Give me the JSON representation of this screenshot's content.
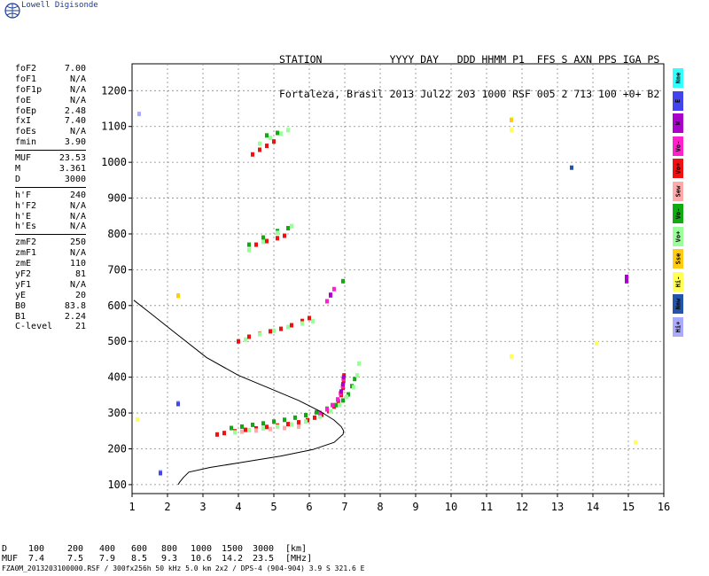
{
  "brand": "Lowell Digisonde",
  "header": {
    "line1": "STATION           YYYY DAY   DDD HHMM P1  FFS S AXN PPS IGA PS",
    "line2": "Fortaleza, Brasil 2013 Jul22 203 1000 RSF 005 2 713 100 +0+ B2"
  },
  "params": [
    [
      {
        "k": "foF2",
        "v": "7.00"
      },
      {
        "k": "foF1",
        "v": "N/A"
      },
      {
        "k": "foF1p",
        "v": "N/A"
      },
      {
        "k": "foE",
        "v": "N/A"
      },
      {
        "k": "foEp",
        "v": "2.48"
      },
      {
        "k": "fxI",
        "v": "7.40"
      },
      {
        "k": "foEs",
        "v": "N/A"
      },
      {
        "k": "fmin",
        "v": "3.90"
      }
    ],
    [
      {
        "k": "MUF",
        "v": "23.53"
      },
      {
        "k": "M",
        "v": "3.361"
      },
      {
        "k": "D",
        "v": "3000"
      }
    ],
    [
      {
        "k": "h'F",
        "v": "240"
      },
      {
        "k": "h'F2",
        "v": "N/A"
      },
      {
        "k": "h'E",
        "v": "N/A"
      },
      {
        "k": "h'Es",
        "v": "N/A"
      }
    ],
    [
      {
        "k": "zmF2",
        "v": "250"
      },
      {
        "k": "zmF1",
        "v": "N/A"
      },
      {
        "k": "zmE",
        "v": "110"
      },
      {
        "k": "yF2",
        "v": "81"
      },
      {
        "k": "yF1",
        "v": "N/A"
      },
      {
        "k": "yE",
        "v": "20"
      },
      {
        "k": "B0",
        "v": "83.8"
      },
      {
        "k": "B1",
        "v": "2.24"
      },
      {
        "k": "C-level",
        "v": "21"
      }
    ]
  ],
  "legend": [
    {
      "label": "Nne",
      "color": "#33ffff"
    },
    {
      "label": "E",
      "color": "#4444ee"
    },
    {
      "label": "W",
      "color": "#aa00cc"
    },
    {
      "label": "Vo-",
      "color": "#ff22cc"
    },
    {
      "label": "Vo+",
      "color": "#ee1111"
    },
    {
      "label": "Sew",
      "color": "#ffaaaa"
    },
    {
      "label": "Vo-",
      "color": "#11aa11"
    },
    {
      "label": "Vo+",
      "color": "#99ff99"
    },
    {
      "label": "Sse",
      "color": "#ffcc11"
    },
    {
      "label": "Hi-",
      "color": "#ffff55"
    },
    {
      "label": "Nnw",
      "color": "#2255aa"
    },
    {
      "label": "Hi+",
      "color": "#aaaaff"
    }
  ],
  "footer": {
    "d_label": "D",
    "muf_label": "MUF",
    "d_values": [
      "100",
      "200",
      "400",
      "600",
      "800",
      "1000",
      "1500",
      "3000"
    ],
    "muf_values": [
      "7.4",
      "7.5",
      "7.9",
      "8.5",
      "9.3",
      "10.6",
      "14.2",
      "23.5"
    ],
    "d_unit": "[km]",
    "muf_unit": "[MHz]"
  },
  "file_line": "FZA0M_2013203100000.RSF / 300fx256h 50 kHz 5.0 km 2x2 / DPS-4 (904-904)   3.9 S 321.6 E",
  "chart_data": {
    "type": "scatter",
    "xlabel": "",
    "ylabel": "",
    "xlim": [
      1,
      16
    ],
    "ylim": [
      75,
      1275
    ],
    "x_ticks": [
      1,
      2,
      3,
      4,
      5,
      6,
      7,
      8,
      9,
      10,
      11,
      12,
      13,
      14,
      15,
      16
    ],
    "y_ticks": [
      100,
      200,
      300,
      400,
      500,
      600,
      700,
      800,
      900,
      1000,
      1100,
      1200
    ],
    "grid": true,
    "profile_curve": {
      "color": "#000000",
      "points": [
        [
          2.3,
          100
        ],
        [
          2.35,
          108
        ],
        [
          2.45,
          120
        ],
        [
          2.6,
          135
        ],
        [
          3.2,
          148
        ],
        [
          4.1,
          162
        ],
        [
          5.2,
          180
        ],
        [
          6.1,
          198
        ],
        [
          6.7,
          218
        ],
        [
          6.95,
          240
        ],
        [
          6.97,
          250
        ],
        [
          6.9,
          262
        ],
        [
          6.7,
          280
        ],
        [
          6.3,
          305
        ],
        [
          5.7,
          335
        ],
        [
          4.9,
          368
        ],
        [
          4.0,
          405
        ],
        [
          3.1,
          455
        ],
        [
          2.2,
          525
        ],
        [
          1.5,
          580
        ],
        [
          1.05,
          615
        ]
      ]
    },
    "series": [
      {
        "color": "#ee1111",
        "points": [
          [
            3.4,
            240
          ],
          [
            3.6,
            244
          ],
          [
            3.9,
            249
          ],
          [
            4.2,
            253
          ],
          [
            4.5,
            257
          ],
          [
            4.8,
            261
          ],
          [
            5.1,
            265
          ],
          [
            5.4,
            269
          ],
          [
            5.7,
            274
          ],
          [
            5.95,
            280
          ],
          [
            6.15,
            287
          ],
          [
            6.35,
            295
          ],
          [
            6.55,
            305
          ],
          [
            6.7,
            318
          ],
          [
            6.82,
            333
          ],
          [
            6.9,
            350
          ],
          [
            6.95,
            370
          ],
          [
            6.97,
            390
          ],
          [
            6.98,
            405
          ],
          [
            4.0,
            500
          ],
          [
            4.3,
            513
          ],
          [
            4.6,
            521
          ],
          [
            4.9,
            528
          ],
          [
            5.2,
            535
          ],
          [
            5.5,
            545
          ],
          [
            5.8,
            557
          ],
          [
            6.0,
            565
          ],
          [
            4.5,
            770
          ],
          [
            4.8,
            780
          ],
          [
            5.1,
            788
          ],
          [
            5.3,
            795
          ],
          [
            4.4,
            1022
          ],
          [
            4.6,
            1035
          ],
          [
            4.8,
            1046
          ],
          [
            5.0,
            1058
          ]
        ]
      },
      {
        "color": "#11aa11",
        "points": [
          [
            3.8,
            258
          ],
          [
            4.1,
            262
          ],
          [
            4.4,
            267
          ],
          [
            4.7,
            271
          ],
          [
            5.0,
            276
          ],
          [
            5.3,
            281
          ],
          [
            5.6,
            287
          ],
          [
            5.9,
            294
          ],
          [
            6.2,
            302
          ],
          [
            6.5,
            312
          ],
          [
            6.75,
            322
          ],
          [
            6.95,
            335
          ],
          [
            7.1,
            352
          ],
          [
            7.2,
            375
          ],
          [
            7.28,
            395
          ],
          [
            4.3,
            770
          ],
          [
            4.7,
            790
          ],
          [
            5.1,
            808
          ],
          [
            5.4,
            816
          ],
          [
            4.8,
            1075
          ],
          [
            5.1,
            1082
          ],
          [
            6.95,
            668
          ]
        ]
      },
      {
        "color": "#99ff99",
        "points": [
          [
            3.9,
            246
          ],
          [
            4.3,
            252
          ],
          [
            4.7,
            257
          ],
          [
            5.1,
            262
          ],
          [
            5.5,
            268
          ],
          [
            5.9,
            276
          ],
          [
            6.3,
            290
          ],
          [
            6.6,
            305
          ],
          [
            6.85,
            322
          ],
          [
            7.05,
            345
          ],
          [
            7.25,
            372
          ],
          [
            7.35,
            405
          ],
          [
            7.4,
            438
          ],
          [
            4.2,
            505
          ],
          [
            4.6,
            520
          ],
          [
            5.0,
            530
          ],
          [
            5.4,
            540
          ],
          [
            5.8,
            550
          ],
          [
            6.1,
            556
          ],
          [
            4.3,
            755
          ],
          [
            4.7,
            778
          ],
          [
            5.1,
            803
          ],
          [
            5.5,
            822
          ],
          [
            4.6,
            1052
          ],
          [
            4.9,
            1068
          ],
          [
            5.2,
            1080
          ],
          [
            5.4,
            1090
          ]
        ]
      },
      {
        "color": "#ff22cc",
        "points": [
          [
            6.3,
            300
          ],
          [
            6.5,
            310
          ],
          [
            6.65,
            322
          ],
          [
            6.8,
            338
          ],
          [
            6.88,
            355
          ],
          [
            6.94,
            375
          ],
          [
            6.96,
            395
          ],
          [
            6.5,
            612
          ],
          [
            6.6,
            628
          ],
          [
            6.7,
            646
          ]
        ]
      },
      {
        "color": "#aa00cc",
        "points": [
          [
            6.9,
            360
          ],
          [
            6.95,
            380
          ],
          [
            6.97,
            400
          ],
          [
            6.6,
            630
          ]
        ]
      },
      {
        "color": "#ffaaaa",
        "points": [
          [
            4.1,
            248
          ],
          [
            4.5,
            251
          ],
          [
            4.9,
            255
          ],
          [
            5.3,
            258
          ],
          [
            5.7,
            262
          ]
        ]
      },
      {
        "color": "#aaaaff",
        "points": [
          [
            1.2,
            1135
          ],
          [
            2.3,
            328
          ],
          [
            1.8,
            135
          ]
        ]
      },
      {
        "color": "#4444ee",
        "points": [
          [
            1.8,
            132
          ],
          [
            2.3,
            325
          ]
        ]
      },
      {
        "color": "#ffff55",
        "points": [
          [
            11.7,
            1120
          ],
          [
            11.7,
            1090
          ],
          [
            11.7,
            458
          ],
          [
            14.1,
            495
          ],
          [
            15.2,
            218
          ],
          [
            1.15,
            282
          ],
          [
            2.3,
            625
          ]
        ]
      },
      {
        "color": "#ffcc11",
        "points": [
          [
            11.7,
            1118
          ],
          [
            2.3,
            628
          ]
        ]
      },
      {
        "color": "#aa00cc",
        "points": [
          [
            14.95,
            680
          ],
          [
            14.95,
            668
          ]
        ]
      },
      {
        "color": "#2255aa",
        "points": [
          [
            13.4,
            985
          ]
        ]
      }
    ]
  }
}
